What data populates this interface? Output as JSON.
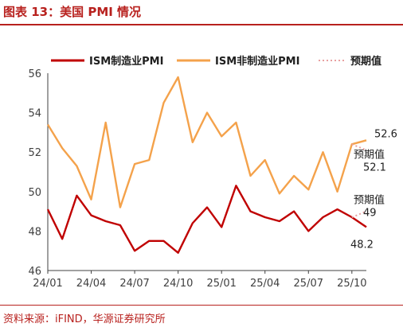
{
  "header": {
    "title": "图表 13：美国 PMI 情况"
  },
  "footer": {
    "source": "资料来源：iFIND，华源证券研究所"
  },
  "chart_data": {
    "type": "line",
    "title": "",
    "xlabel": "",
    "ylabel": "",
    "ylim": [
      46,
      56
    ],
    "yticks": [
      46,
      48,
      50,
      52,
      54,
      56
    ],
    "x": [
      "24/01",
      "24/02",
      "24/03",
      "24/04",
      "24/05",
      "24/06",
      "24/07",
      "24/08",
      "24/09",
      "24/10",
      "24/11",
      "24/12",
      "25/01",
      "25/02",
      "25/03",
      "25/04",
      "25/05",
      "25/06",
      "25/07",
      "25/08",
      "25/09",
      "25/10",
      "25/11"
    ],
    "xtick_labels": [
      "24/01",
      "24/04",
      "24/07",
      "24/10",
      "25/01",
      "25/04",
      "25/07",
      "25/10"
    ],
    "legend_position": "top",
    "grid": false,
    "series": [
      {
        "name": "ISM制造业PMI",
        "color": "#c00000",
        "values": [
          49.1,
          47.6,
          49.8,
          48.8,
          48.5,
          48.3,
          47.0,
          47.5,
          47.5,
          46.9,
          48.4,
          49.2,
          48.2,
          50.3,
          49.0,
          48.7,
          48.5,
          49.0,
          48.0,
          48.7,
          49.1,
          48.7,
          48.2
        ]
      },
      {
        "name": "ISM非制造业PMI",
        "color": "#f4a24b",
        "values": [
          53.4,
          52.2,
          51.3,
          49.6,
          53.5,
          49.2,
          51.4,
          51.6,
          54.5,
          55.8,
          52.5,
          54.0,
          52.8,
          53.5,
          50.8,
          51.6,
          49.9,
          50.8,
          50.1,
          52.0,
          50.0,
          52.4,
          52.6
        ]
      },
      {
        "name": "预期值",
        "color": "#e8a0a0",
        "style": "dotted",
        "segments": [
          {
            "from": [
              "25/10",
              52.4
            ],
            "to": [
              "25/11",
              52.1
            ]
          },
          {
            "from": [
              "25/10",
              48.7
            ],
            "to": [
              "25/11",
              49.0
            ]
          }
        ]
      }
    ],
    "annotations": [
      {
        "text": "52.6",
        "series": "ISM非制造业PMI",
        "x": "25/11",
        "y": 52.6
      },
      {
        "text": "预期值",
        "series": "预期值",
        "x": "25/11",
        "y": 52.1
      },
      {
        "text": "52.1",
        "series": "预期值",
        "x": "25/11",
        "y": 52.1
      },
      {
        "text": "预期值",
        "series": "预期值",
        "x": "25/11",
        "y": 49.0
      },
      {
        "text": "49",
        "series": "预期值",
        "x": "25/11",
        "y": 49.0
      },
      {
        "text": "48.2",
        "series": "ISM制造业PMI",
        "x": "25/11",
        "y": 48.2
      }
    ]
  }
}
